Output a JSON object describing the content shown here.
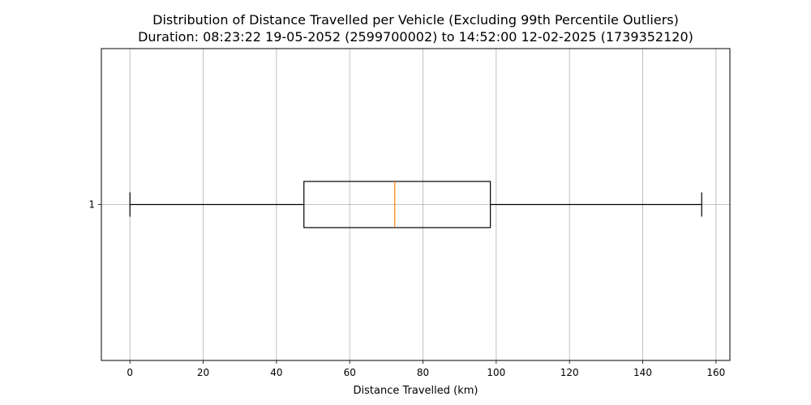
{
  "chart_data": {
    "type": "boxplot",
    "orientation": "horizontal",
    "title": "Distribution of Distance Travelled per Vehicle (Excluding 99th Percentile Outliers)",
    "subtitle": "Duration: 08:23:22 19-05-2052 (2599700002) to 14:52:00 12-02-2025 (1739352120)",
    "xlabel": "Distance Travelled (km)",
    "ylabel": "",
    "xlim": [
      -7.8,
      163.8
    ],
    "x_ticks": [
      0,
      20,
      40,
      60,
      80,
      100,
      120,
      140,
      160
    ],
    "grid": true,
    "boxes": [
      {
        "label": "1",
        "whisker_low": 0,
        "q1": 47.5,
        "median": 72.3,
        "q3": 98.4,
        "whisker_high": 156.1
      }
    ],
    "colors": {
      "box": "#000000",
      "median": "#ff7f0e",
      "grid": "#b0b0b0"
    }
  }
}
